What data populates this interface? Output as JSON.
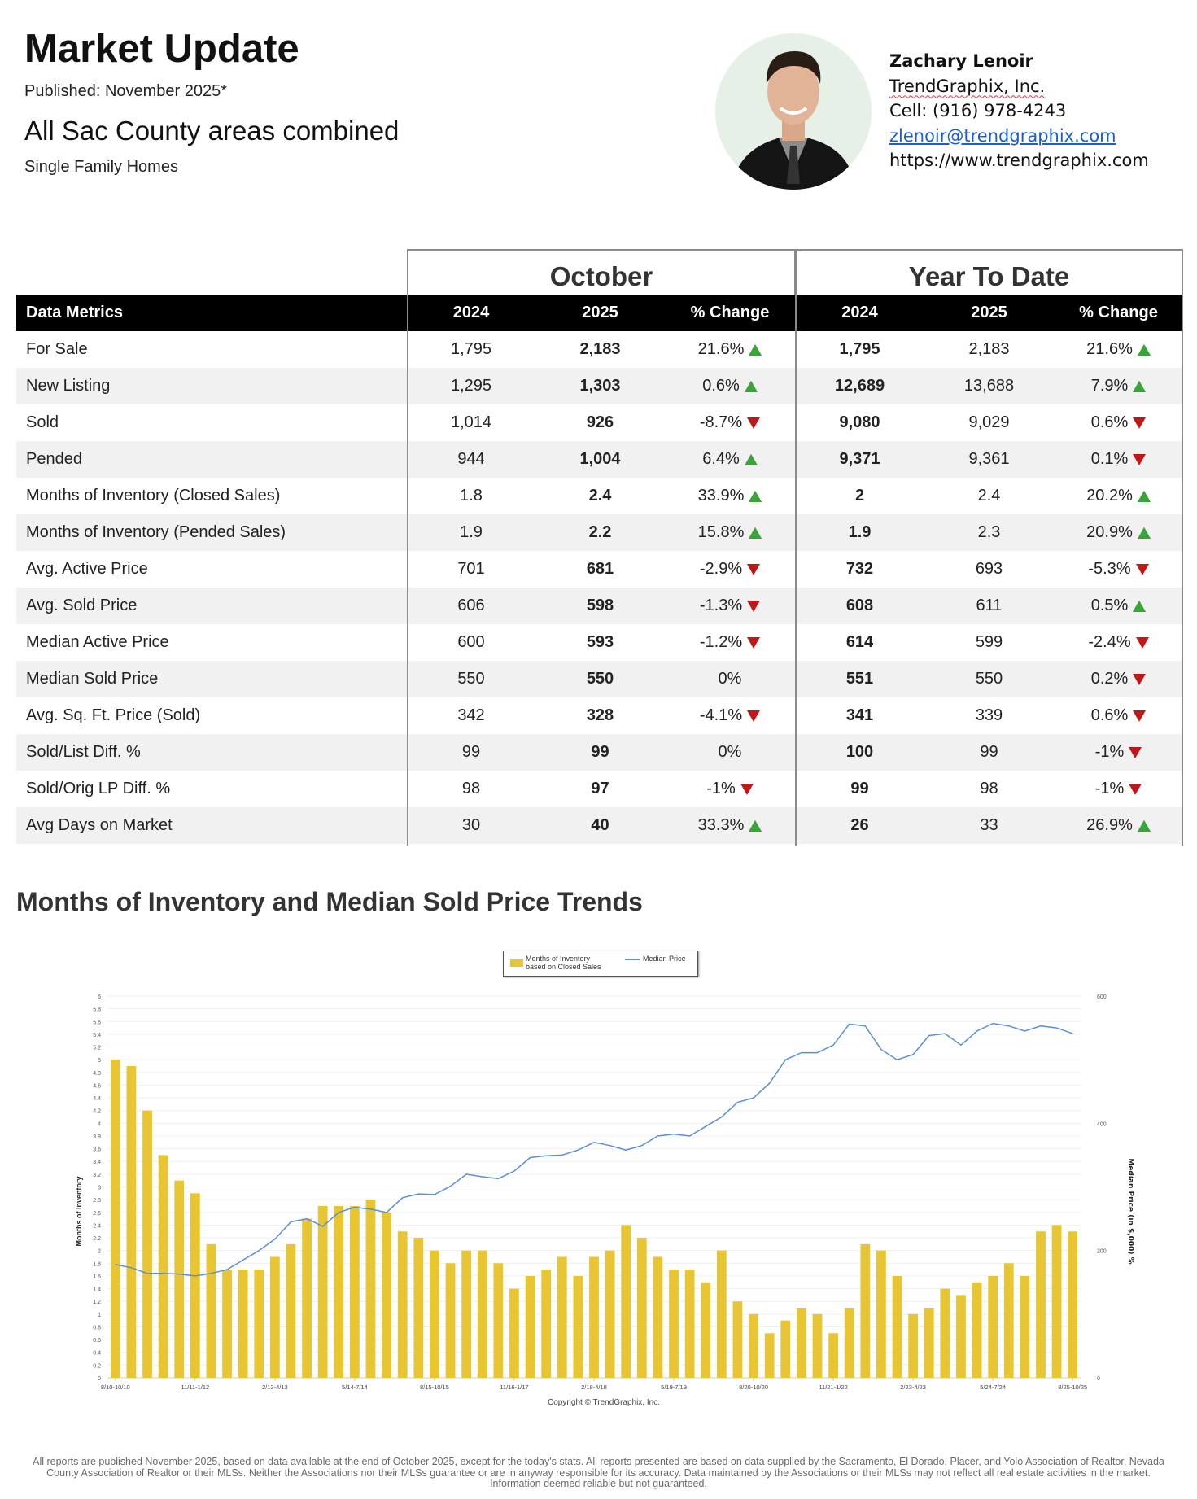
{
  "header": {
    "title": "Market Update",
    "published": "Published: November 2025*",
    "area": "All Sac County areas combined",
    "property_type": "Single Family Homes"
  },
  "agent": {
    "name": "Zachary Lenoir",
    "company": "TrendGraphix, Inc.",
    "cell": "Cell: (916) 978-4243",
    "email": "zlenoir@trendgraphix.com",
    "website": "https://www.trendgraphix.com"
  },
  "table": {
    "group_headers": [
      "October",
      "Year To Date"
    ],
    "columns": [
      "Data Metrics",
      "2024",
      "2025",
      "% Change",
      "2024",
      "2025",
      "% Change"
    ],
    "rows": [
      {
        "metric": "For Sale",
        "oct_2024": "1,795",
        "oct_2025": "2,183",
        "oct_change": "21.6%",
        "oct_dir": "up",
        "ytd_2024": "1,795",
        "ytd_2025": "2,183",
        "ytd_change": "21.6%",
        "ytd_dir": "up"
      },
      {
        "metric": "New Listing",
        "oct_2024": "1,295",
        "oct_2025": "1,303",
        "oct_change": "0.6%",
        "oct_dir": "up",
        "ytd_2024": "12,689",
        "ytd_2025": "13,688",
        "ytd_change": "7.9%",
        "ytd_dir": "up"
      },
      {
        "metric": "Sold",
        "oct_2024": "1,014",
        "oct_2025": "926",
        "oct_change": "-8.7%",
        "oct_dir": "down",
        "ytd_2024": "9,080",
        "ytd_2025": "9,029",
        "ytd_change": "0.6%",
        "ytd_dir": "down"
      },
      {
        "metric": "Pended",
        "oct_2024": "944",
        "oct_2025": "1,004",
        "oct_change": "6.4%",
        "oct_dir": "up",
        "ytd_2024": "9,371",
        "ytd_2025": "9,361",
        "ytd_change": "0.1%",
        "ytd_dir": "down"
      },
      {
        "metric": "Months of Inventory (Closed Sales)",
        "oct_2024": "1.8",
        "oct_2025": "2.4",
        "oct_change": "33.9%",
        "oct_dir": "up",
        "ytd_2024": "2",
        "ytd_2025": "2.4",
        "ytd_change": "20.2%",
        "ytd_dir": "up"
      },
      {
        "metric": "Months of Inventory (Pended Sales)",
        "oct_2024": "1.9",
        "oct_2025": "2.2",
        "oct_change": "15.8%",
        "oct_dir": "up",
        "ytd_2024": "1.9",
        "ytd_2025": "2.3",
        "ytd_change": "20.9%",
        "ytd_dir": "up"
      },
      {
        "metric": "Avg. Active Price",
        "oct_2024": "701",
        "oct_2025": "681",
        "oct_change": "-2.9%",
        "oct_dir": "down",
        "ytd_2024": "732",
        "ytd_2025": "693",
        "ytd_change": "-5.3%",
        "ytd_dir": "down"
      },
      {
        "metric": "Avg. Sold Price",
        "oct_2024": "606",
        "oct_2025": "598",
        "oct_change": "-1.3%",
        "oct_dir": "down",
        "ytd_2024": "608",
        "ytd_2025": "611",
        "ytd_change": "0.5%",
        "ytd_dir": "up"
      },
      {
        "metric": "Median Active Price",
        "oct_2024": "600",
        "oct_2025": "593",
        "oct_change": "-1.2%",
        "oct_dir": "down",
        "ytd_2024": "614",
        "ytd_2025": "599",
        "ytd_change": "-2.4%",
        "ytd_dir": "down"
      },
      {
        "metric": "Median Sold Price",
        "oct_2024": "550",
        "oct_2025": "550",
        "oct_change": "0%",
        "oct_dir": "none",
        "ytd_2024": "551",
        "ytd_2025": "550",
        "ytd_change": "0.2%",
        "ytd_dir": "down"
      },
      {
        "metric": "Avg. Sq. Ft. Price (Sold)",
        "oct_2024": "342",
        "oct_2025": "328",
        "oct_change": "-4.1%",
        "oct_dir": "down",
        "ytd_2024": "341",
        "ytd_2025": "339",
        "ytd_change": "0.6%",
        "ytd_dir": "down"
      },
      {
        "metric": "Sold/List Diff. %",
        "oct_2024": "99",
        "oct_2025": "99",
        "oct_change": "0%",
        "oct_dir": "none",
        "ytd_2024": "100",
        "ytd_2025": "99",
        "ytd_change": "-1%",
        "ytd_dir": "down"
      },
      {
        "metric": "Sold/Orig LP Diff. %",
        "oct_2024": "98",
        "oct_2025": "97",
        "oct_change": "-1%",
        "oct_dir": "down",
        "ytd_2024": "99",
        "ytd_2025": "98",
        "ytd_change": "-1%",
        "ytd_dir": "down"
      },
      {
        "metric": "Avg Days on Market",
        "oct_2024": "30",
        "oct_2025": "40",
        "oct_change": "33.3%",
        "oct_dir": "up",
        "ytd_2024": "26",
        "ytd_2025": "33",
        "ytd_change": "26.9%",
        "ytd_dir": "up"
      }
    ]
  },
  "chart_section_title": "Months of Inventory and Median Sold Price Trends",
  "chart_data": {
    "type": "bar+line",
    "x_tick_labels": [
      "8/10-10/10",
      "11/11-1/12",
      "2/13-4/13",
      "5/14-7/14",
      "8/15-10/15",
      "11/16-1/17",
      "2/18-4/18",
      "5/19-7/19",
      "8/20-10/20",
      "11/21-1/22",
      "2/23-4/23",
      "5/24-7/24",
      "8/25-10/25"
    ],
    "ylabel_left": "Months of Inventory",
    "ylabel_right": "Median Price (in $,000) %",
    "ylim_left": [
      0,
      6
    ],
    "ylim_right": [
      0,
      600
    ],
    "left_ticks": [
      "0",
      "0.2",
      "0.4",
      "0.6",
      "0.8",
      "1",
      "1.2",
      "1.4",
      "1.6",
      "1.8",
      "2",
      "2.2",
      "2.4",
      "2.6",
      "2.8",
      "3",
      "3.2",
      "3.4",
      "3.6",
      "3.8",
      "4",
      "4.2",
      "4.4",
      "4.6",
      "4.8",
      "5",
      "5.2",
      "5.4",
      "5.6",
      "5.8",
      "6"
    ],
    "right_ticks": [
      "0",
      "200",
      "400",
      "600"
    ],
    "legend_position": "top-center",
    "grid": true,
    "series": [
      {
        "name": "Months of Inventory based on Closed Sales",
        "type": "bar",
        "axis": "left",
        "color": "#e8c532",
        "values": [
          5.0,
          4.9,
          4.2,
          3.5,
          3.1,
          2.9,
          2.1,
          1.7,
          1.7,
          1.7,
          1.9,
          2.1,
          2.5,
          2.7,
          2.7,
          2.7,
          2.8,
          2.6,
          2.3,
          2.2,
          2.0,
          1.8,
          2.0,
          2.0,
          1.8,
          1.4,
          1.6,
          1.7,
          1.9,
          1.6,
          1.9,
          2.0,
          2.4,
          2.2,
          1.9,
          1.7,
          1.7,
          1.5,
          2.0,
          1.2,
          1.0,
          0.7,
          0.9,
          1.1,
          1.0,
          0.7,
          1.1,
          2.1,
          2.0,
          1.6,
          1.0,
          1.1,
          1.4,
          1.3,
          1.5,
          1.6,
          1.8,
          1.6,
          2.3,
          2.4,
          2.3
        ]
      },
      {
        "name": "Median Price",
        "type": "line",
        "axis": "right",
        "color": "#5b8fd4",
        "values": [
          178,
          173,
          164,
          164,
          163,
          160,
          164,
          170,
          185,
          200,
          218,
          245,
          250,
          238,
          260,
          268,
          265,
          260,
          283,
          289,
          288,
          301,
          320,
          316,
          313,
          325,
          346,
          349,
          350,
          358,
          370,
          365,
          358,
          365,
          380,
          383,
          380,
          395,
          410,
          433,
          440,
          463,
          500,
          511,
          511,
          523,
          556,
          553,
          516,
          500,
          508,
          538,
          541,
          523,
          545,
          557,
          553,
          545,
          553,
          550,
          541
        ]
      }
    ],
    "copyright": "Copyright © TrendGraphix, Inc."
  },
  "footer": "All reports are published November 2025, based on data available at the end of October 2025, except for the today's stats. All reports presented are based on data supplied by the Sacramento, El Dorado, Placer, and Yolo Association of Realtor, Nevada County Association of Realtor or their MLSs. Neither the Associations nor their MLSs guarantee or are in anyway responsible for its accuracy. Data maintained by the Associations or their MLSs may not reflect all real estate activities in the market. Information deemed reliable but not guaranteed."
}
